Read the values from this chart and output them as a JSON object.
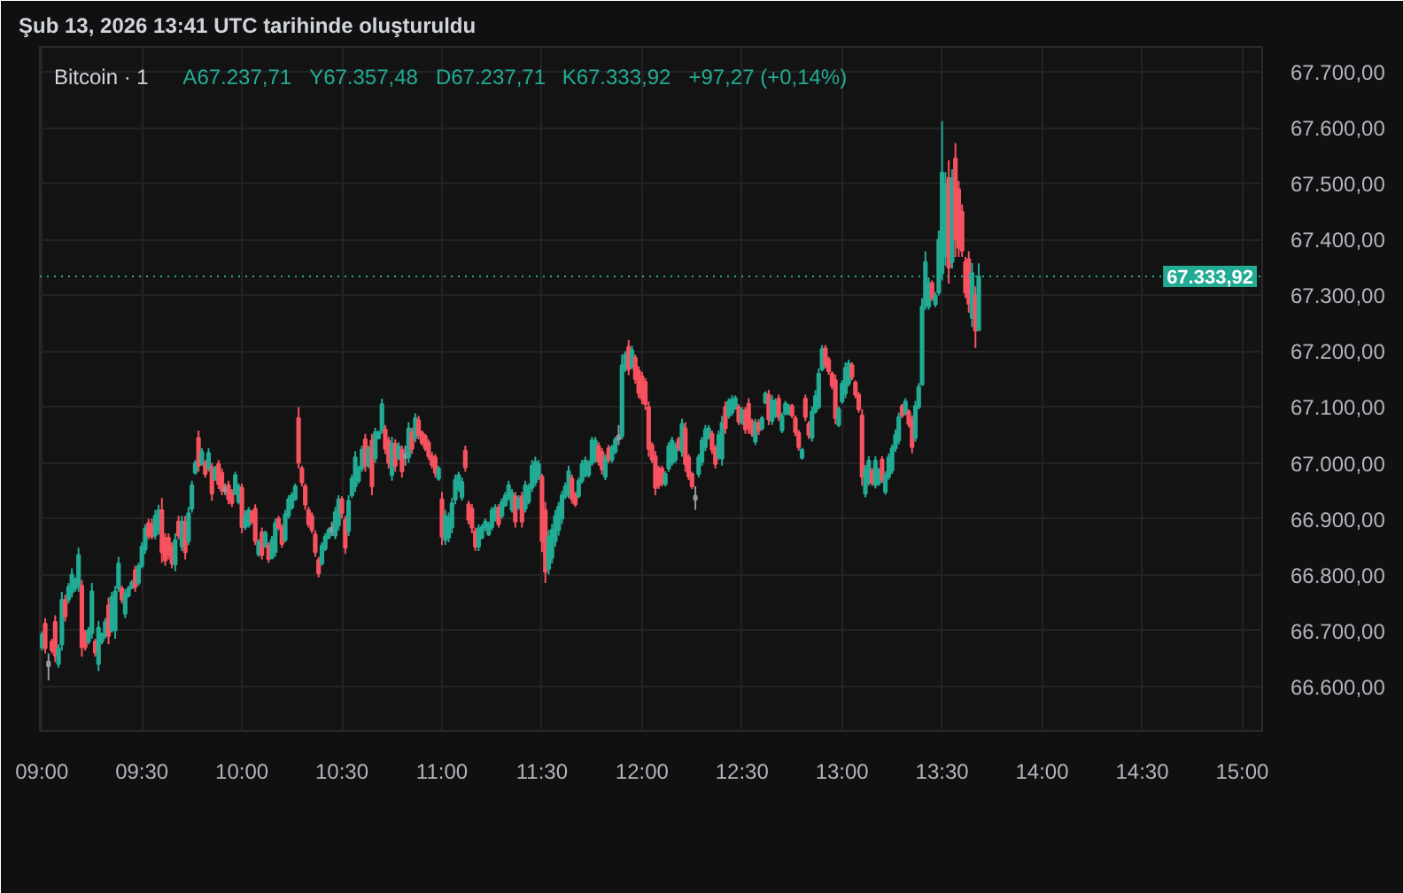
{
  "chart_data": {
    "type": "candlestick",
    "title": "Bitcoin · 1",
    "annotations": [
      "Şub 13, 2026 13:41 UTC tarihinde oluşturuldu",
      "A67.237,71",
      "Y67.357,48",
      "D67.237,71",
      "K67.333,92",
      "+97,27 (+0,14%)"
    ],
    "xlim": [
      8.99,
      15.1
    ],
    "ylim": [
      66520,
      67745
    ],
    "xticks": [
      {
        "value": 9,
        "label": "09:00"
      },
      {
        "value": 9.5,
        "label": "09:30"
      },
      {
        "value": 10,
        "label": "10:00"
      },
      {
        "value": 10.5,
        "label": "10:30"
      },
      {
        "value": 11,
        "label": "11:00"
      },
      {
        "value": 11.5,
        "label": "11:30"
      },
      {
        "value": 12,
        "label": "12:00"
      },
      {
        "value": 12.5,
        "label": "12:30"
      },
      {
        "value": 13,
        "label": "13:00"
      },
      {
        "value": 13.5,
        "label": "13:30"
      },
      {
        "value": 14,
        "label": "14:00"
      },
      {
        "value": 14.5,
        "label": "14:30"
      },
      {
        "value": 15,
        "label": "15:00"
      }
    ],
    "yticks": [
      {
        "value": 66600,
        "label": "66.600,00"
      },
      {
        "value": 66700,
        "label": "66.700,00"
      },
      {
        "value": 66800,
        "label": "66.800,00"
      },
      {
        "value": 66900,
        "label": "66.900,00"
      },
      {
        "value": 67000,
        "label": "67.000,00"
      },
      {
        "value": 67100,
        "label": "67.100,00"
      },
      {
        "value": 67200,
        "label": "67.200,00"
      },
      {
        "value": 67300,
        "label": "67.300,00"
      },
      {
        "value": 67400,
        "label": "67.400,00"
      },
      {
        "value": 67500,
        "label": "67.500,00"
      },
      {
        "value": 67600,
        "label": "67.600,00"
      },
      {
        "value": 67700,
        "label": "67.700,00"
      }
    ],
    "grid": true,
    "ref_lines": [
      {
        "axis": "y",
        "value": 67333.92,
        "label": "67.333,92",
        "color": "#22ab94",
        "line_style": "dotted"
      }
    ],
    "x": [
      9,
      9.0167,
      9.0333,
      9.05,
      9.0667,
      9.0833,
      9.1,
      9.1167,
      9.1333,
      9.15,
      9.1667,
      9.1833,
      9.2,
      9.2167,
      9.2333,
      9.25,
      9.2667,
      9.2833,
      9.3,
      9.3167,
      9.3333,
      9.35,
      9.3667,
      9.3833,
      9.4,
      9.4167,
      9.4333,
      9.45,
      9.4667,
      9.4833,
      9.5,
      9.5167,
      9.5333,
      9.55,
      9.5667,
      9.5833,
      9.6,
      9.6167,
      9.6333,
      9.65,
      9.6667,
      9.6833,
      9.7,
      9.7167,
      9.7333,
      9.75,
      9.7667,
      9.7833,
      9.8,
      9.8167,
      9.8333,
      9.85,
      9.8667,
      9.8833,
      9.9,
      9.9167,
      9.9333,
      9.95,
      9.9667,
      9.9833,
      10,
      10.0167,
      10.0333,
      10.05,
      10.0667,
      10.0833,
      10.1,
      10.1167,
      10.1333,
      10.15,
      10.1667,
      10.1833,
      10.2,
      10.2167,
      10.2333,
      10.25,
      10.2667,
      10.2833,
      10.3,
      10.3167,
      10.3333,
      10.35,
      10.3667,
      10.3833,
      10.4,
      10.4167,
      10.4333,
      10.45,
      10.4667,
      10.4833,
      10.5,
      10.5167,
      10.5333,
      10.55,
      10.5667,
      10.5833,
      10.6,
      10.6167,
      10.6333,
      10.65,
      10.6667,
      10.6833,
      10.7,
      10.7167,
      10.7333,
      10.75,
      10.7667,
      10.7833,
      10.8,
      10.8167,
      10.8333,
      10.85,
      10.8667,
      10.8833,
      10.9,
      10.9167,
      10.9333,
      10.95,
      10.9667,
      10.9833,
      11,
      11.0167,
      11.0333,
      11.05,
      11.0667,
      11.0833,
      11.1,
      11.1167,
      11.1333,
      11.15,
      11.1667,
      11.1833,
      11.2,
      11.2167,
      11.2333,
      11.25,
      11.2667,
      11.2833,
      11.3,
      11.3167,
      11.3333,
      11.35,
      11.3667,
      11.3833,
      11.4,
      11.4167,
      11.4333,
      11.45,
      11.4667,
      11.4833,
      11.5,
      11.5167,
      11.5333,
      11.55,
      11.5667,
      11.5833,
      11.6,
      11.6167,
      11.6333,
      11.65,
      11.6667,
      11.6833,
      11.7,
      11.7167,
      11.7333,
      11.75,
      11.7667,
      11.7833,
      11.8,
      11.8167,
      11.8333,
      11.85,
      11.8667,
      11.8833,
      11.9,
      11.9167,
      11.9333,
      11.95,
      11.9667,
      11.9833,
      12,
      12.0167,
      12.0333,
      12.05,
      12.0667,
      12.0833,
      12.1,
      12.1167,
      12.1333,
      12.15,
      12.1667,
      12.1833,
      12.2,
      12.2167,
      12.2333,
      12.25,
      12.2667,
      12.2833,
      12.3,
      12.3167,
      12.3333,
      12.35,
      12.3667,
      12.3833,
      12.4,
      12.4167,
      12.4333,
      12.45,
      12.4667,
      12.4833,
      12.5,
      12.5167,
      12.5333,
      12.55,
      12.5667,
      12.5833,
      12.6,
      12.6167,
      12.6333,
      12.65,
      12.6667,
      12.6833,
      12.7,
      12.7167,
      12.7333,
      12.75,
      12.7667,
      12.7833,
      12.8,
      12.8167,
      12.8333,
      12.85,
      12.8667,
      12.8833,
      12.9,
      12.9167,
      12.9333,
      12.95,
      12.9667,
      12.9833,
      13,
      13.0167,
      13.0333,
      13.05,
      13.0667,
      13.0833,
      13.1,
      13.1167,
      13.1333,
      13.15,
      13.1667,
      13.1833,
      13.2,
      13.2167,
      13.2333,
      13.25,
      13.2667,
      13.2833,
      13.3,
      13.3167,
      13.3333,
      13.35,
      13.3667,
      13.3833,
      13.4,
      13.4167,
      13.4333,
      13.45,
      13.4667,
      13.4833,
      13.5,
      13.5167,
      13.5333,
      13.55,
      13.5667,
      13.5833,
      13.6,
      13.6167,
      13.6333,
      13.65,
      13.6667,
      13.6833
    ],
    "ohlc": [
      [
        66670,
        66698,
        66664,
        66692
      ],
      [
        66712,
        66722,
        66659,
        66668
      ],
      [
        66644,
        66659,
        66611,
        66636
      ],
      [
        66680,
        66685,
        66659,
        66664
      ],
      [
        66715,
        66727,
        66643,
        66655
      ],
      [
        66640,
        66675,
        66633,
        66668
      ],
      [
        66675,
        66769,
        66664,
        66755
      ],
      [
        66755,
        66764,
        66716,
        66725
      ],
      [
        66755,
        66785,
        66748,
        66778
      ],
      [
        66768,
        66811,
        66759,
        66800
      ],
      [
        66775,
        66795,
        66769,
        66790
      ],
      [
        66780,
        66848,
        66769,
        66835
      ],
      [
        66780,
        66790,
        66653,
        66670
      ],
      [
        66695,
        66701,
        66664,
        66670
      ],
      [
        66680,
        66706,
        66675,
        66700
      ],
      [
        66695,
        66785,
        66685,
        66770
      ],
      [
        66680,
        66685,
        66653,
        66660
      ],
      [
        66640,
        66717,
        66627,
        66705
      ],
      [
        66680,
        66696,
        66675,
        66692
      ],
      [
        66690,
        66722,
        66685,
        66715
      ],
      [
        66745,
        66759,
        66675,
        66690
      ],
      [
        66700,
        66769,
        66696,
        66760
      ],
      [
        66700,
        66780,
        66685,
        66770
      ],
      [
        66775,
        66832,
        66769,
        66820
      ],
      [
        66775,
        66780,
        66748,
        66755
      ],
      [
        66730,
        66774,
        66722,
        66765
      ],
      [
        66762,
        66780,
        66759,
        66775
      ],
      [
        66776,
        66790,
        66774,
        66786
      ],
      [
        66808,
        66816,
        66769,
        66778
      ],
      [
        66785,
        66821,
        66780,
        66815
      ],
      [
        66815,
        66858,
        66811,
        66850
      ],
      [
        66845,
        66890,
        66837,
        66882
      ],
      [
        66892,
        66900,
        66863,
        66870
      ],
      [
        66890,
        66900,
        66863,
        66868
      ],
      [
        66870,
        66916,
        66863,
        66905
      ],
      [
        66880,
        66925,
        66872,
        66915
      ],
      [
        66915,
        66937,
        66821,
        66840
      ],
      [
        66865,
        66874,
        66816,
        66825
      ],
      [
        66866,
        66874,
        66827,
        66835
      ],
      [
        66850,
        66858,
        66811,
        66820
      ],
      [
        66818,
        66874,
        66806,
        66862
      ],
      [
        66895,
        66905,
        66863,
        66870
      ],
      [
        66850,
        66905,
        66842,
        66895
      ],
      [
        66895,
        66905,
        66827,
        66840
      ],
      [
        66860,
        66921,
        66853,
        66910
      ],
      [
        66918,
        66968,
        66911,
        66960
      ],
      [
        66982,
        67005,
        66979,
        67000
      ],
      [
        67045,
        67058,
        66984,
        66995
      ],
      [
        66998,
        67026,
        66995,
        67020
      ],
      [
        67000,
        67005,
        66974,
        66980
      ],
      [
        66990,
        67026,
        66984,
        67018
      ],
      [
        66992,
        67000,
        66932,
        66945
      ],
      [
        66970,
        66995,
        66968,
        66990
      ],
      [
        66998,
        67005,
        66953,
        66962
      ],
      [
        66982,
        66990,
        66942,
        66950
      ],
      [
        66955,
        66963,
        66942,
        66949
      ],
      [
        66960,
        66968,
        66926,
        66935
      ],
      [
        66948,
        66953,
        66921,
        66928
      ],
      [
        66945,
        66984,
        66942,
        66978
      ],
      [
        66930,
        66963,
        66926,
        66958
      ],
      [
        66955,
        66963,
        66874,
        66885
      ],
      [
        66885,
        66915,
        66880,
        66905
      ],
      [
        66888,
        66921,
        66884,
        66915
      ],
      [
        66912,
        66916,
        66890,
        66895
      ],
      [
        66918,
        66926,
        66853,
        66860
      ],
      [
        66836,
        66863,
        66832,
        66858
      ],
      [
        66876,
        66884,
        66827,
        66835
      ],
      [
        66850,
        66879,
        66848,
        66875
      ],
      [
        66852,
        66858,
        66821,
        66828
      ],
      [
        66830,
        66869,
        66827,
        66862
      ],
      [
        66840,
        66900,
        66832,
        66892
      ],
      [
        66900,
        66905,
        66879,
        66884
      ],
      [
        66885,
        66890,
        66848,
        66855
      ],
      [
        66862,
        66916,
        66858,
        66908
      ],
      [
        66905,
        66942,
        66900,
        66935
      ],
      [
        66920,
        66948,
        66916,
        66942
      ],
      [
        66935,
        66963,
        66932,
        66958
      ],
      [
        67080,
        67100,
        66990,
        67000
      ],
      [
        66990,
        66995,
        66958,
        66965
      ],
      [
        66958,
        66963,
        66916,
        66925
      ],
      [
        66915,
        66921,
        66884,
        66890
      ],
      [
        66905,
        66911,
        66874,
        66880
      ],
      [
        66872,
        66879,
        66832,
        66840
      ],
      [
        66826,
        66832,
        66795,
        66802
      ],
      [
        66820,
        66858,
        66816,
        66852
      ],
      [
        66846,
        66874,
        66842,
        66868
      ],
      [
        66866,
        66884,
        66863,
        66880
      ],
      [
        66884,
        66895,
        66869,
        66877
      ],
      [
        66870,
        66921,
        66863,
        66912
      ],
      [
        66888,
        66942,
        66879,
        66935
      ],
      [
        66935,
        66940,
        66900,
        66910
      ],
      [
        66898,
        66905,
        66837,
        66848
      ],
      [
        66878,
        66942,
        66869,
        66932
      ],
      [
        66942,
        66979,
        66937,
        66972
      ],
      [
        66958,
        67021,
        66948,
        67010
      ],
      [
        66968,
        66995,
        66963,
        66990
      ],
      [
        66990,
        67031,
        66984,
        67024
      ],
      [
        67042,
        67052,
        66984,
        66995
      ],
      [
        66995,
        67031,
        66990,
        67025
      ],
      [
        67040,
        67052,
        66942,
        66958
      ],
      [
        67008,
        67063,
        67000,
        67055
      ],
      [
        67044,
        67058,
        67042,
        67055
      ],
      [
        67058,
        67115,
        67052,
        67105
      ],
      [
        67060,
        67068,
        67016,
        67025
      ],
      [
        67040,
        67047,
        66990,
        67000
      ],
      [
        66978,
        67047,
        66968,
        67035
      ],
      [
        67034,
        67042,
        66984,
        66995
      ],
      [
        67008,
        67037,
        67005,
        67030
      ],
      [
        67024,
        67031,
        66974,
        66985
      ],
      [
        67016,
        67031,
        66995,
        67009
      ],
      [
        67010,
        67073,
        67000,
        67062
      ],
      [
        67055,
        67063,
        67016,
        67025
      ],
      [
        67045,
        67089,
        67037,
        67080
      ],
      [
        67076,
        67084,
        67042,
        67050
      ],
      [
        67054,
        67058,
        67031,
        67036
      ],
      [
        67048,
        67052,
        67021,
        67026
      ],
      [
        67036,
        67042,
        67005,
        67012
      ],
      [
        67012,
        67020,
        66990,
        66996
      ],
      [
        67010,
        67016,
        66974,
        66982
      ],
      [
        66972,
        66995,
        66968,
        66990
      ],
      [
        66935,
        66948,
        66853,
        66868
      ],
      [
        66862,
        66916,
        66853,
        66905
      ],
      [
        66866,
        66911,
        66858,
        66902
      ],
      [
        66884,
        66937,
        66874,
        66928
      ],
      [
        66934,
        66979,
        66926,
        66970
      ],
      [
        66954,
        66984,
        66948,
        66978
      ],
      [
        66938,
        66974,
        66932,
        66966
      ],
      [
        67022,
        67031,
        66984,
        66992
      ],
      [
        66926,
        66932,
        66890,
        66898
      ],
      [
        66918,
        66926,
        66874,
        66884
      ],
      [
        66878,
        66884,
        66842,
        66850
      ],
      [
        66850,
        66890,
        66842,
        66882
      ],
      [
        66866,
        66890,
        66863,
        66885
      ],
      [
        66885,
        66900,
        66878,
        66895
      ],
      [
        66872,
        66895,
        66869,
        66890
      ],
      [
        66885,
        66921,
        66879,
        66915
      ],
      [
        66898,
        66926,
        66895,
        66920
      ],
      [
        66920,
        66926,
        66884,
        66890
      ],
      [
        66905,
        66937,
        66900,
        66930
      ],
      [
        66924,
        66948,
        66921,
        66942
      ],
      [
        66938,
        66968,
        66932,
        66960
      ],
      [
        66916,
        66953,
        66911,
        66946
      ],
      [
        66940,
        66948,
        66884,
        66895
      ],
      [
        66920,
        66942,
        66916,
        66936
      ],
      [
        66940,
        66948,
        66884,
        66895
      ],
      [
        66918,
        66968,
        66911,
        66960
      ],
      [
        66930,
        66963,
        66926,
        66956
      ],
      [
        66955,
        67005,
        66948,
        66995
      ],
      [
        66965,
        67011,
        66958,
        67002
      ],
      [
        66975,
        67005,
        66969,
        66998
      ],
      [
        66975,
        66980,
        66840,
        66860
      ],
      [
        66915,
        66930,
        66785,
        66805
      ],
      [
        66810,
        66880,
        66800,
        66868
      ],
      [
        66830,
        66890,
        66820,
        66880
      ],
      [
        66860,
        66916,
        66850,
        66905
      ],
      [
        66880,
        66930,
        66870,
        66922
      ],
      [
        66900,
        66950,
        66890,
        66942
      ],
      [
        66940,
        66965,
        66935,
        66958
      ],
      [
        66945,
        66995,
        66937,
        66985
      ],
      [
        66972,
        66979,
        66927,
        66935
      ],
      [
        66944,
        66948,
        66921,
        66926
      ],
      [
        66940,
        66974,
        66937,
        66968
      ],
      [
        66968,
        67005,
        66963,
        66998
      ],
      [
        66978,
        67011,
        66974,
        67004
      ],
      [
        66978,
        67005,
        66974,
        67000
      ],
      [
        67000,
        67047,
        66995,
        67040
      ],
      [
        67005,
        67047,
        67000,
        67040
      ],
      [
        67030,
        67037,
        66995,
        67002
      ],
      [
        67020,
        67026,
        66979,
        66988
      ],
      [
        66975,
        67016,
        66969,
        67010
      ],
      [
        67026,
        67032,
        67000,
        67006
      ],
      [
        67005,
        67032,
        67000,
        67028
      ],
      [
        67020,
        67047,
        67016,
        67042
      ],
      [
        67049,
        67068,
        67032,
        67042
      ],
      [
        67048,
        67194,
        67042,
        67175
      ],
      [
        67168,
        67200,
        67163,
        67194
      ],
      [
        67208,
        67220,
        67157,
        67168
      ],
      [
        67172,
        67210,
        67168,
        67202
      ],
      [
        67188,
        67194,
        67142,
        67150
      ],
      [
        67165,
        67173,
        67116,
        67125
      ],
      [
        67155,
        67163,
        67105,
        67115
      ],
      [
        67145,
        67152,
        67095,
        67105
      ],
      [
        67100,
        67110,
        67011,
        67025
      ],
      [
        67032,
        67037,
        67000,
        67006
      ],
      [
        67012,
        67021,
        66942,
        66955
      ],
      [
        66990,
        66995,
        66953,
        66960
      ],
      [
        66990,
        66995,
        66958,
        66964
      ],
      [
        66962,
        66985,
        66958,
        66980
      ],
      [
        66990,
        67037,
        66984,
        67030
      ],
      [
        67000,
        67047,
        66995,
        67040
      ],
      [
        67005,
        67037,
        67000,
        67030
      ],
      [
        67042,
        67047,
        67021,
        67026
      ],
      [
        67020,
        67079,
        67011,
        67070
      ],
      [
        67062,
        67073,
        66984,
        66998
      ],
      [
        67010,
        67016,
        66969,
        66976
      ],
      [
        66980,
        66984,
        66953,
        66958
      ],
      [
        66941,
        66958,
        66916,
        66934
      ],
      [
        66980,
        67016,
        66974,
        67010
      ],
      [
        67002,
        67047,
        66995,
        67040
      ],
      [
        67028,
        67068,
        67021,
        67060
      ],
      [
        67046,
        67068,
        67042,
        67062
      ],
      [
        67052,
        67058,
        67016,
        67024
      ],
      [
        67026,
        67032,
        66990,
        66998
      ],
      [
        67010,
        67058,
        67005,
        67050
      ],
      [
        67008,
        67084,
        66995,
        67072
      ],
      [
        67100,
        67110,
        67052,
        67062
      ],
      [
        67084,
        67116,
        67079,
        67110
      ],
      [
        67090,
        67121,
        67084,
        67114
      ],
      [
        67098,
        67121,
        67095,
        67116
      ],
      [
        67100,
        67105,
        67068,
        67074
      ],
      [
        67072,
        67100,
        67068,
        67095
      ],
      [
        67094,
        67100,
        67052,
        67060
      ],
      [
        67106,
        67116,
        67052,
        67062
      ],
      [
        67074,
        67079,
        67047,
        67052
      ],
      [
        67038,
        67079,
        67032,
        67072
      ],
      [
        67072,
        67078,
        67050,
        67058
      ],
      [
        67062,
        67084,
        67058,
        67080
      ],
      [
        67108,
        67128,
        67105,
        67124
      ],
      [
        67122,
        67131,
        67068,
        67078
      ],
      [
        67075,
        67121,
        67068,
        67112
      ],
      [
        67085,
        67116,
        67080,
        67110
      ],
      [
        67115,
        67122,
        67075,
        67082
      ],
      [
        67058,
        67090,
        67053,
        67084
      ],
      [
        67088,
        67111,
        67085,
        67106
      ],
      [
        67088,
        67106,
        67085,
        67102
      ],
      [
        67102,
        67106,
        67080,
        67085
      ],
      [
        67080,
        67085,
        67048,
        67055
      ],
      [
        67054,
        67059,
        67022,
        67028
      ],
      [
        67009,
        67027,
        67006,
        67024
      ],
      [
        67115,
        67122,
        67075,
        67082
      ],
      [
        67070,
        67075,
        67043,
        67050
      ],
      [
        67045,
        67101,
        67038,
        67092
      ],
      [
        67092,
        67130,
        67088,
        67120
      ],
      [
        67100,
        67169,
        67096,
        67160
      ],
      [
        67168,
        67211,
        67164,
        67204
      ],
      [
        67205,
        67211,
        67169,
        67175
      ],
      [
        67185,
        67190,
        67158,
        67164
      ],
      [
        67160,
        67164,
        67132,
        67138
      ],
      [
        67148,
        67158,
        67069,
        67080
      ],
      [
        67068,
        67101,
        67064,
        67096
      ],
      [
        67110,
        67148,
        67106,
        67142
      ],
      [
        67124,
        67180,
        67116,
        67170
      ],
      [
        67142,
        67185,
        67137,
        67178
      ],
      [
        67175,
        67180,
        67148,
        67154
      ],
      [
        67144,
        67148,
        67116,
        67122
      ],
      [
        67122,
        67127,
        67090,
        67096
      ],
      [
        67085,
        67096,
        66959,
        66975
      ],
      [
        66945,
        66996,
        66938,
        66988
      ],
      [
        66965,
        67012,
        66959,
        67004
      ],
      [
        66986,
        66991,
        66959,
        66964
      ],
      [
        66960,
        67012,
        66954,
        67004
      ],
      [
        66963,
        66991,
        66959,
        66986
      ],
      [
        67006,
        67012,
        66964,
        66970
      ],
      [
        66948,
        66985,
        66943,
        66978
      ],
      [
        66975,
        67017,
        66970,
        67010
      ],
      [
        66986,
        67033,
        66980,
        67026
      ],
      [
        67026,
        67060,
        67020,
        67050
      ],
      [
        67040,
        67090,
        67033,
        67082
      ],
      [
        67102,
        67106,
        67080,
        67085
      ],
      [
        67088,
        67116,
        67085,
        67110
      ],
      [
        67092,
        67096,
        67064,
        67070
      ],
      [
        67078,
        67085,
        67017,
        67028
      ],
      [
        67045,
        67111,
        67038,
        67102
      ],
      [
        67100,
        67143,
        67096,
        67136
      ],
      [
        67140,
        67295,
        67138,
        67280
      ],
      [
        67282,
        67379,
        67274,
        67360
      ],
      [
        67280,
        67332,
        67274,
        67322
      ],
      [
        67322,
        67327,
        67290,
        67296
      ],
      [
        67284,
        67306,
        67279,
        67300
      ],
      [
        67305,
        67416,
        67300,
        67400
      ],
      [
        67340,
        67612,
        67327,
        67520
      ],
      [
        67370,
        67521,
        67353,
        67500
      ],
      [
        67510,
        67542,
        67321,
        67350
      ],
      [
        67360,
        67526,
        67348,
        67510
      ],
      [
        67545,
        67573,
        67369,
        67400
      ],
      [
        67490,
        67505,
        67369,
        67385
      ],
      [
        67450,
        67463,
        67369,
        67380
      ],
      [
        67360,
        67369,
        67295,
        67305
      ],
      [
        67365,
        67379,
        67269,
        67285
      ],
      [
        67260,
        67358,
        67243,
        67340
      ],
      [
        67300,
        67316,
        67206,
        67236.65
      ],
      [
        67237.71,
        67357.48,
        67237.71,
        67333.92
      ]
    ],
    "colors": [
      "#22ab94",
      "#f7525f",
      "#9598a1",
      "#f7525f",
      "#f7525f",
      "#22ab94",
      "#22ab94",
      "#f7525f",
      "#22ab94",
      "#22ab94",
      "#22ab94",
      "#22ab94",
      "#f7525f",
      "#f7525f",
      "#22ab94",
      "#22ab94",
      "#f7525f",
      "#22ab94",
      "#22ab94",
      "#22ab94",
      "#f7525f",
      "#22ab94",
      "#22ab94",
      "#22ab94",
      "#f7525f",
      "#22ab94",
      "#22ab94",
      "#22ab94",
      "#f7525f",
      "#22ab94",
      "#22ab94",
      "#22ab94",
      "#f7525f",
      "#f7525f",
      "#22ab94",
      "#22ab94",
      "#f7525f",
      "#f7525f",
      "#f7525f",
      "#f7525f",
      "#22ab94",
      "#f7525f",
      "#22ab94",
      "#f7525f",
      "#22ab94",
      "#22ab94",
      "#22ab94",
      "#f7525f",
      "#22ab94",
      "#f7525f",
      "#22ab94",
      "#f7525f",
      "#22ab94",
      "#f7525f",
      "#f7525f",
      "#9598a1",
      "#f7525f",
      "#f7525f",
      "#22ab94",
      "#22ab94",
      "#f7525f",
      "#22ab94",
      "#22ab94",
      "#f7525f",
      "#f7525f",
      "#22ab94",
      "#f7525f",
      "#22ab94",
      "#f7525f",
      "#22ab94",
      "#22ab94",
      "#f7525f",
      "#f7525f",
      "#22ab94",
      "#22ab94",
      "#22ab94",
      "#22ab94",
      "#f7525f",
      "#f7525f",
      "#f7525f",
      "#f7525f",
      "#f7525f",
      "#f7525f",
      "#f7525f",
      "#22ab94",
      "#22ab94",
      "#22ab94",
      "#9598a1",
      "#22ab94",
      "#22ab94",
      "#f7525f",
      "#f7525f",
      "#22ab94",
      "#22ab94",
      "#22ab94",
      "#22ab94",
      "#22ab94",
      "#f7525f",
      "#22ab94",
      "#f7525f",
      "#22ab94",
      "#22ab94",
      "#22ab94",
      "#f7525f",
      "#f7525f",
      "#22ab94",
      "#f7525f",
      "#22ab94",
      "#f7525f",
      "#9598a1",
      "#22ab94",
      "#f7525f",
      "#22ab94",
      "#f7525f",
      "#f7525f",
      "#f7525f",
      "#f7525f",
      "#f7525f",
      "#f7525f",
      "#22ab94",
      "#f7525f",
      "#22ab94",
      "#22ab94",
      "#22ab94",
      "#22ab94",
      "#22ab94",
      "#22ab94",
      "#f7525f",
      "#f7525f",
      "#f7525f",
      "#f7525f",
      "#22ab94",
      "#22ab94",
      "#22ab94",
      "#22ab94",
      "#22ab94",
      "#22ab94",
      "#f7525f",
      "#22ab94",
      "#22ab94",
      "#22ab94",
      "#22ab94",
      "#f7525f",
      "#22ab94",
      "#f7525f",
      "#22ab94",
      "#22ab94",
      "#22ab94",
      "#22ab94",
      "#22ab94",
      "#f7525f",
      "#f7525f",
      "#22ab94",
      "#22ab94",
      "#22ab94",
      "#22ab94",
      "#22ab94",
      "#22ab94",
      "#22ab94",
      "#f7525f",
      "#f7525f",
      "#22ab94",
      "#22ab94",
      "#22ab94",
      "#22ab94",
      "#22ab94",
      "#22ab94",
      "#f7525f",
      "#f7525f",
      "#22ab94",
      "#f7525f",
      "#22ab94",
      "#22ab94",
      "#9598a1",
      "#22ab94",
      "#22ab94",
      "#f7525f",
      "#22ab94",
      "#f7525f",
      "#f7525f",
      "#f7525f",
      "#f7525f",
      "#f7525f",
      "#f7525f",
      "#f7525f",
      "#f7525f",
      "#f7525f",
      "#22ab94",
      "#22ab94",
      "#22ab94",
      "#22ab94",
      "#f7525f",
      "#22ab94",
      "#f7525f",
      "#f7525f",
      "#f7525f",
      "#9598a1",
      "#22ab94",
      "#22ab94",
      "#22ab94",
      "#22ab94",
      "#f7525f",
      "#f7525f",
      "#22ab94",
      "#22ab94",
      "#f7525f",
      "#22ab94",
      "#22ab94",
      "#22ab94",
      "#f7525f",
      "#22ab94",
      "#f7525f",
      "#f7525f",
      "#f7525f",
      "#22ab94",
      "#f7525f",
      "#22ab94",
      "#22ab94",
      "#f7525f",
      "#22ab94",
      "#22ab94",
      "#f7525f",
      "#22ab94",
      "#22ab94",
      "#22ab94",
      "#f7525f",
      "#f7525f",
      "#f7525f",
      "#22ab94",
      "#f7525f",
      "#f7525f",
      "#22ab94",
      "#22ab94",
      "#22ab94",
      "#22ab94",
      "#f7525f",
      "#f7525f",
      "#f7525f",
      "#f7525f",
      "#22ab94",
      "#22ab94",
      "#22ab94",
      "#22ab94",
      "#f7525f",
      "#f7525f",
      "#f7525f",
      "#f7525f",
      "#22ab94",
      "#22ab94",
      "#f7525f",
      "#22ab94",
      "#22ab94",
      "#f7525f",
      "#22ab94",
      "#22ab94",
      "#22ab94",
      "#22ab94",
      "#22ab94",
      "#f7525f",
      "#22ab94",
      "#f7525f",
      "#f7525f",
      "#22ab94",
      "#22ab94",
      "#22ab94",
      "#22ab94",
      "#22ab94",
      "#f7525f",
      "#22ab94",
      "#22ab94",
      "#22ab94",
      "#22ab94",
      "#f7525f",
      "#22ab94",
      "#f7525f",
      "#f7525f",
      "#f7525f",
      "#f7525f",
      "#f7525f",
      "#22ab94",
      "#f7525f",
      "#22ab94"
    ]
  }
}
